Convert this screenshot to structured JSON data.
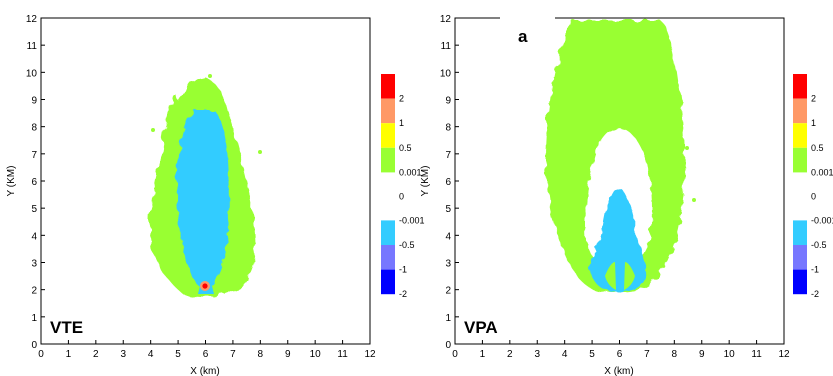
{
  "figure_label": "a",
  "colors": {
    "red": "#ff0000",
    "salmon": "#ff9966",
    "yellow": "#ffff00",
    "green": "#99ff33",
    "cyan": "#33ccff",
    "lavender": "#7777ff",
    "blue": "#0000ff"
  },
  "chart_data": [
    {
      "type": "heatmap",
      "panel_label": "VTE",
      "xlabel": "X (km)",
      "ylabel": "Y (KM)",
      "xlim": [
        0,
        12
      ],
      "ylim": [
        0,
        12
      ],
      "xticks": [
        "0",
        "1",
        "2",
        "3",
        "4",
        "5",
        "6",
        "7",
        "8",
        "9",
        "10",
        "11",
        "12"
      ],
      "yticks": [
        "0",
        "1",
        "2",
        "3",
        "4",
        "5",
        "6",
        "7",
        "8",
        "9",
        "10",
        "11",
        "12"
      ],
      "grid": false,
      "legend": {
        "placement": "right",
        "levels": [
          "2",
          "1",
          "0.5",
          "0.001",
          "0",
          "-0.001",
          "-0.5",
          "-1",
          "-2"
        ],
        "colors": [
          "red",
          "salmon",
          "yellow",
          "green",
          "cyan",
          "lavender",
          "blue"
        ]
      },
      "regions": [
        {
          "level": "0.001 to 0.5",
          "color": "green",
          "x_range": [
            4.0,
            8.0
          ],
          "y_range": [
            1.8,
            9.8
          ]
        },
        {
          "level": "-0.5 to -0.001",
          "color": "cyan",
          "x_range": [
            4.9,
            7.0
          ],
          "y_range": [
            1.9,
            8.6
          ]
        },
        {
          "level": "> 2",
          "color": "red",
          "center": [
            6.0,
            2.1
          ]
        }
      ]
    },
    {
      "type": "heatmap",
      "panel_label": "VPA",
      "xlabel": "X (km)",
      "ylabel": "Y (KM)",
      "xlim": [
        0,
        12
      ],
      "ylim": [
        0,
        12
      ],
      "xticks": [
        "0",
        "1",
        "2",
        "3",
        "4",
        "5",
        "6",
        "7",
        "8",
        "9",
        "10",
        "11",
        "12"
      ],
      "yticks": [
        "0",
        "1",
        "2",
        "3",
        "4",
        "5",
        "6",
        "7",
        "8",
        "9",
        "10",
        "11",
        "12"
      ],
      "grid": false,
      "legend": {
        "placement": "right",
        "levels": [
          "2",
          "1",
          "0.5",
          "0.001",
          "0",
          "-0.001",
          "-0.5",
          "-1",
          "-2"
        ],
        "colors": [
          "red",
          "salmon",
          "yellow",
          "green",
          "cyan",
          "lavender",
          "blue"
        ]
      },
      "regions": [
        {
          "level": "0.001 to 0.5",
          "color": "green",
          "x_range": [
            3.4,
            8.3
          ],
          "y_range": [
            1.9,
            11.9
          ]
        },
        {
          "level": "-0.5 to -0.001",
          "color": "cyan",
          "x_range": [
            5.0,
            7.0
          ],
          "y_range": [
            1.9,
            5.6
          ]
        }
      ]
    }
  ]
}
